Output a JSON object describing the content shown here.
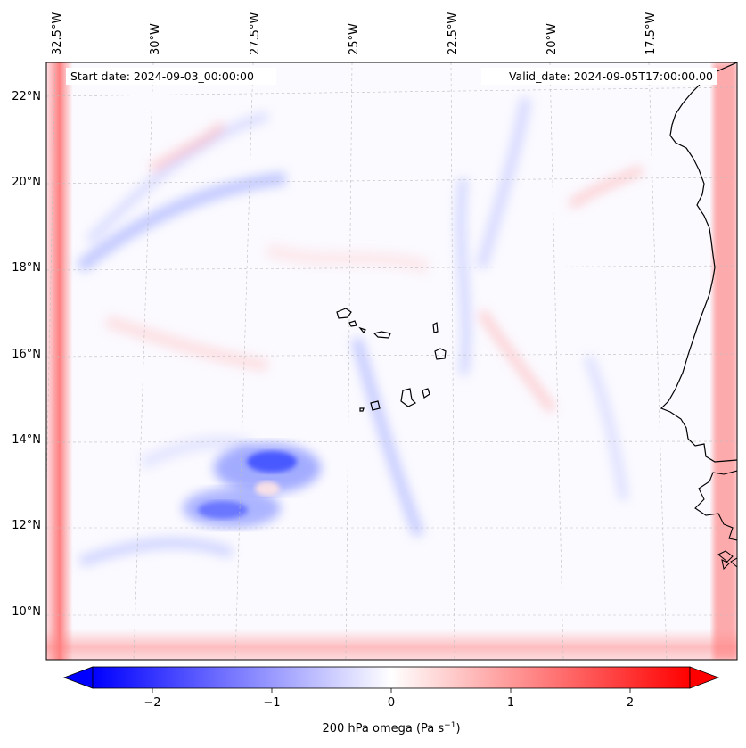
{
  "map": {
    "start_date_label": "Start date: 2024-09-03_00:00:00",
    "valid_date_label": "Valid_date: 2024-09-05T17:00:00.00",
    "lon_labels": [
      "32.5°W",
      "30°W",
      "27.5°W",
      "25°W",
      "22.5°W",
      "20°W",
      "17.5°W"
    ],
    "lat_labels": [
      "22°N",
      "20°N",
      "18°N",
      "16°N",
      "14°N",
      "12°N",
      "10°N"
    ],
    "colors": {
      "negative": "#0000ff",
      "neutral": "#ffffff",
      "positive": "#ff0000",
      "coast": "#000000"
    }
  },
  "colorbar": {
    "label_text": "200 hPa omega (Pa s",
    "label_sup": "−1",
    "label_close": ")",
    "ticks": [
      "−2",
      "−1",
      "0",
      "1",
      "2"
    ],
    "tick_values": [
      -2,
      -1,
      0,
      1,
      2
    ],
    "range": [
      -2.5,
      2.5
    ]
  }
}
